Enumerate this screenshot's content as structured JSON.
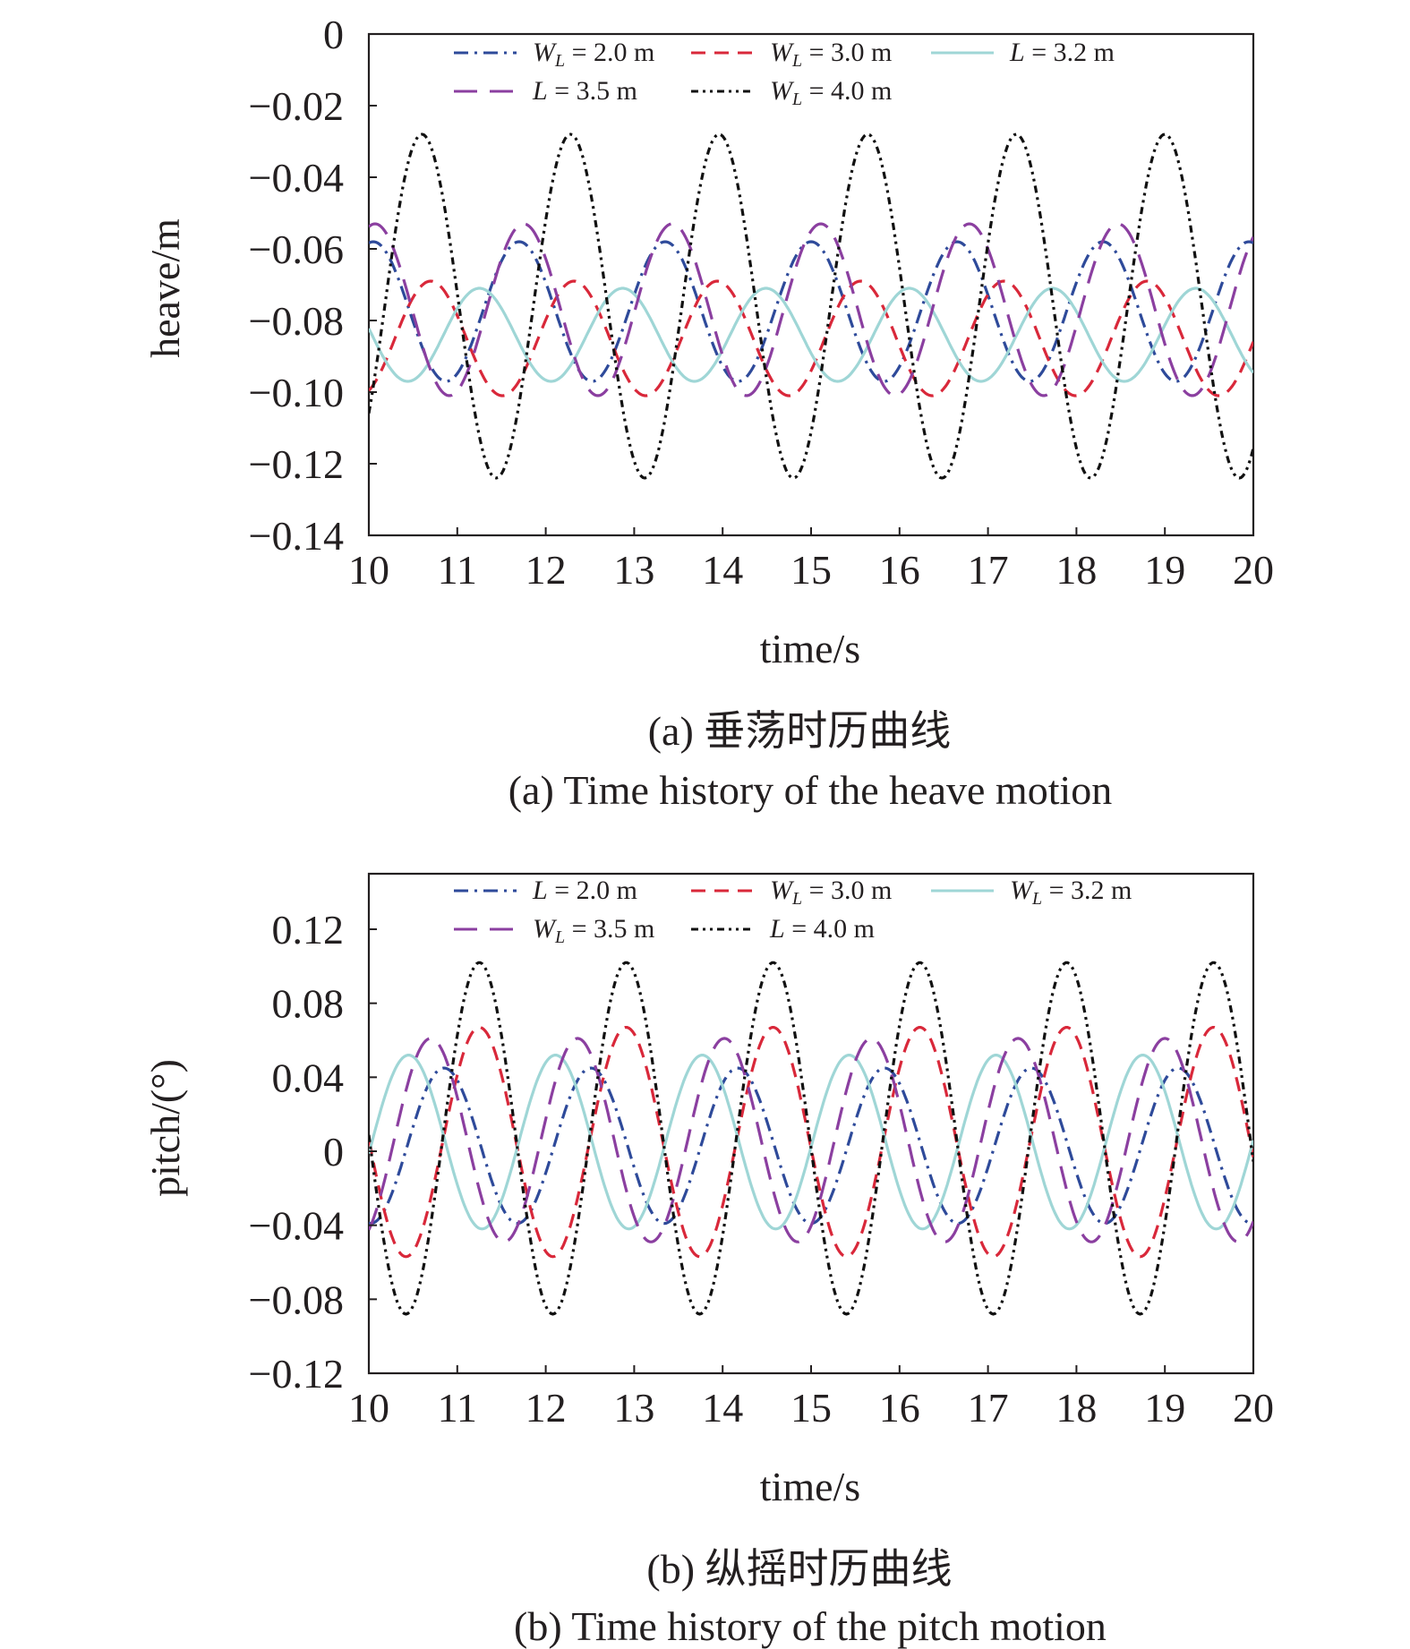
{
  "charts": [
    {
      "caption_cn": "(a) 垂荡时历曲线",
      "caption_en": "(a) Time history of the heave motion",
      "chart_data": {
        "type": "line",
        "xlabel": "time/s",
        "ylabel": "heave/m",
        "xlim": [
          10,
          20
        ],
        "ylim": [
          -0.14,
          0
        ],
        "xticks": [
          "10",
          "11",
          "12",
          "13",
          "14",
          "15",
          "16",
          "17",
          "18",
          "19",
          "20"
        ],
        "yticks": [
          "0",
          "−0.02",
          "−0.04",
          "−0.06",
          "−0.08",
          "−0.10",
          "−0.12",
          "−0.14"
        ],
        "legend_position": "top",
        "series": [
          {
            "name": "W_L = 2.0 m",
            "legend_var": "W",
            "legend_sub": "L",
            "legend_value": " = 2.0 m",
            "color": "#2e4a9a",
            "dash": "dashdot",
            "mean": -0.0775,
            "amplitude": 0.0195,
            "period": 1.65,
            "phase": 11.7
          },
          {
            "name": "W_L = 3.0 m",
            "legend_var": "W",
            "legend_sub": "L",
            "legend_value": " = 3.0 m",
            "color": "#d9283a",
            "dash": "dash",
            "mean": -0.085,
            "amplitude": 0.016,
            "period": 1.62,
            "phase": 10.7
          },
          {
            "name": "L = 3.2 m",
            "legend_var": "L",
            "legend_sub": "",
            "legend_value": " = 3.2 m",
            "color": "#9fd6d6",
            "dash": "solid",
            "mean": -0.084,
            "amplitude": 0.013,
            "period": 1.62,
            "phase": 11.25
          },
          {
            "name": "L = 3.5 m",
            "legend_var": "L",
            "legend_sub": "",
            "legend_value": " = 3.5 m",
            "color": "#8b3fa0",
            "dash": "longdash",
            "mean": -0.077,
            "amplitude": 0.024,
            "period": 1.68,
            "phase": 11.75
          },
          {
            "name": "W_L = 4.0 m",
            "legend_var": "W",
            "legend_sub": "L",
            "legend_value": " = 4.0 m",
            "color": "#111111",
            "dash": "dashdotdot",
            "mean": -0.076,
            "amplitude": 0.048,
            "period": 1.68,
            "phase": 10.6
          }
        ]
      }
    },
    {
      "caption_cn": "(b) 纵摇时历曲线",
      "caption_en": "(b) Time history of the pitch motion",
      "chart_data": {
        "type": "line",
        "xlabel": "time/s",
        "ylabel": "pitch/(°)",
        "xlim": [
          10,
          20
        ],
        "ylim": [
          -0.12,
          0.15
        ],
        "xticks": [
          "10",
          "11",
          "12",
          "13",
          "14",
          "15",
          "16",
          "17",
          "18",
          "19",
          "20"
        ],
        "yticks": [
          "0.12",
          "0.08",
          "0.04",
          "0",
          "−0.04",
          "−0.08",
          "−0.12"
        ],
        "ytick_values": [
          0.12,
          0.08,
          0.04,
          0,
          -0.04,
          -0.08,
          -0.12
        ],
        "legend_position": "top",
        "series": [
          {
            "name": "L = 2.0 m",
            "legend_var": "L",
            "legend_sub": "",
            "legend_value": " = 2.0 m",
            "color": "#2e4a9a",
            "dash": "dashdot",
            "mean": 0.003,
            "amplitude": 0.042,
            "period": 1.66,
            "phase": 10.85
          },
          {
            "name": "W_L = 3.0 m",
            "legend_var": "W",
            "legend_sub": "L",
            "legend_value": " = 3.0 m",
            "color": "#d9283a",
            "dash": "dash",
            "mean": 0.005,
            "amplitude": 0.062,
            "period": 1.66,
            "phase": 11.25
          },
          {
            "name": "W_L = 3.2 m",
            "legend_var": "W",
            "legend_sub": "L",
            "legend_value": " = 3.2 m",
            "color": "#9fd6d6",
            "dash": "solid",
            "mean": 0.005,
            "amplitude": 0.047,
            "period": 1.66,
            "phase": 10.45
          },
          {
            "name": "W_L = 3.5 m",
            "legend_var": "W",
            "legend_sub": "L",
            "legend_value": " = 3.5 m",
            "color": "#8b3fa0",
            "dash": "longdash",
            "mean": 0.006,
            "amplitude": 0.055,
            "period": 1.66,
            "phase": 10.7
          },
          {
            "name": "L = 4.0 m",
            "legend_var": "L",
            "legend_sub": "",
            "legend_value": " = 4.0 m",
            "color": "#111111",
            "dash": "dashdotdot",
            "mean": 0.007,
            "amplitude": 0.095,
            "period": 1.66,
            "phase": 11.25
          }
        ]
      }
    }
  ]
}
